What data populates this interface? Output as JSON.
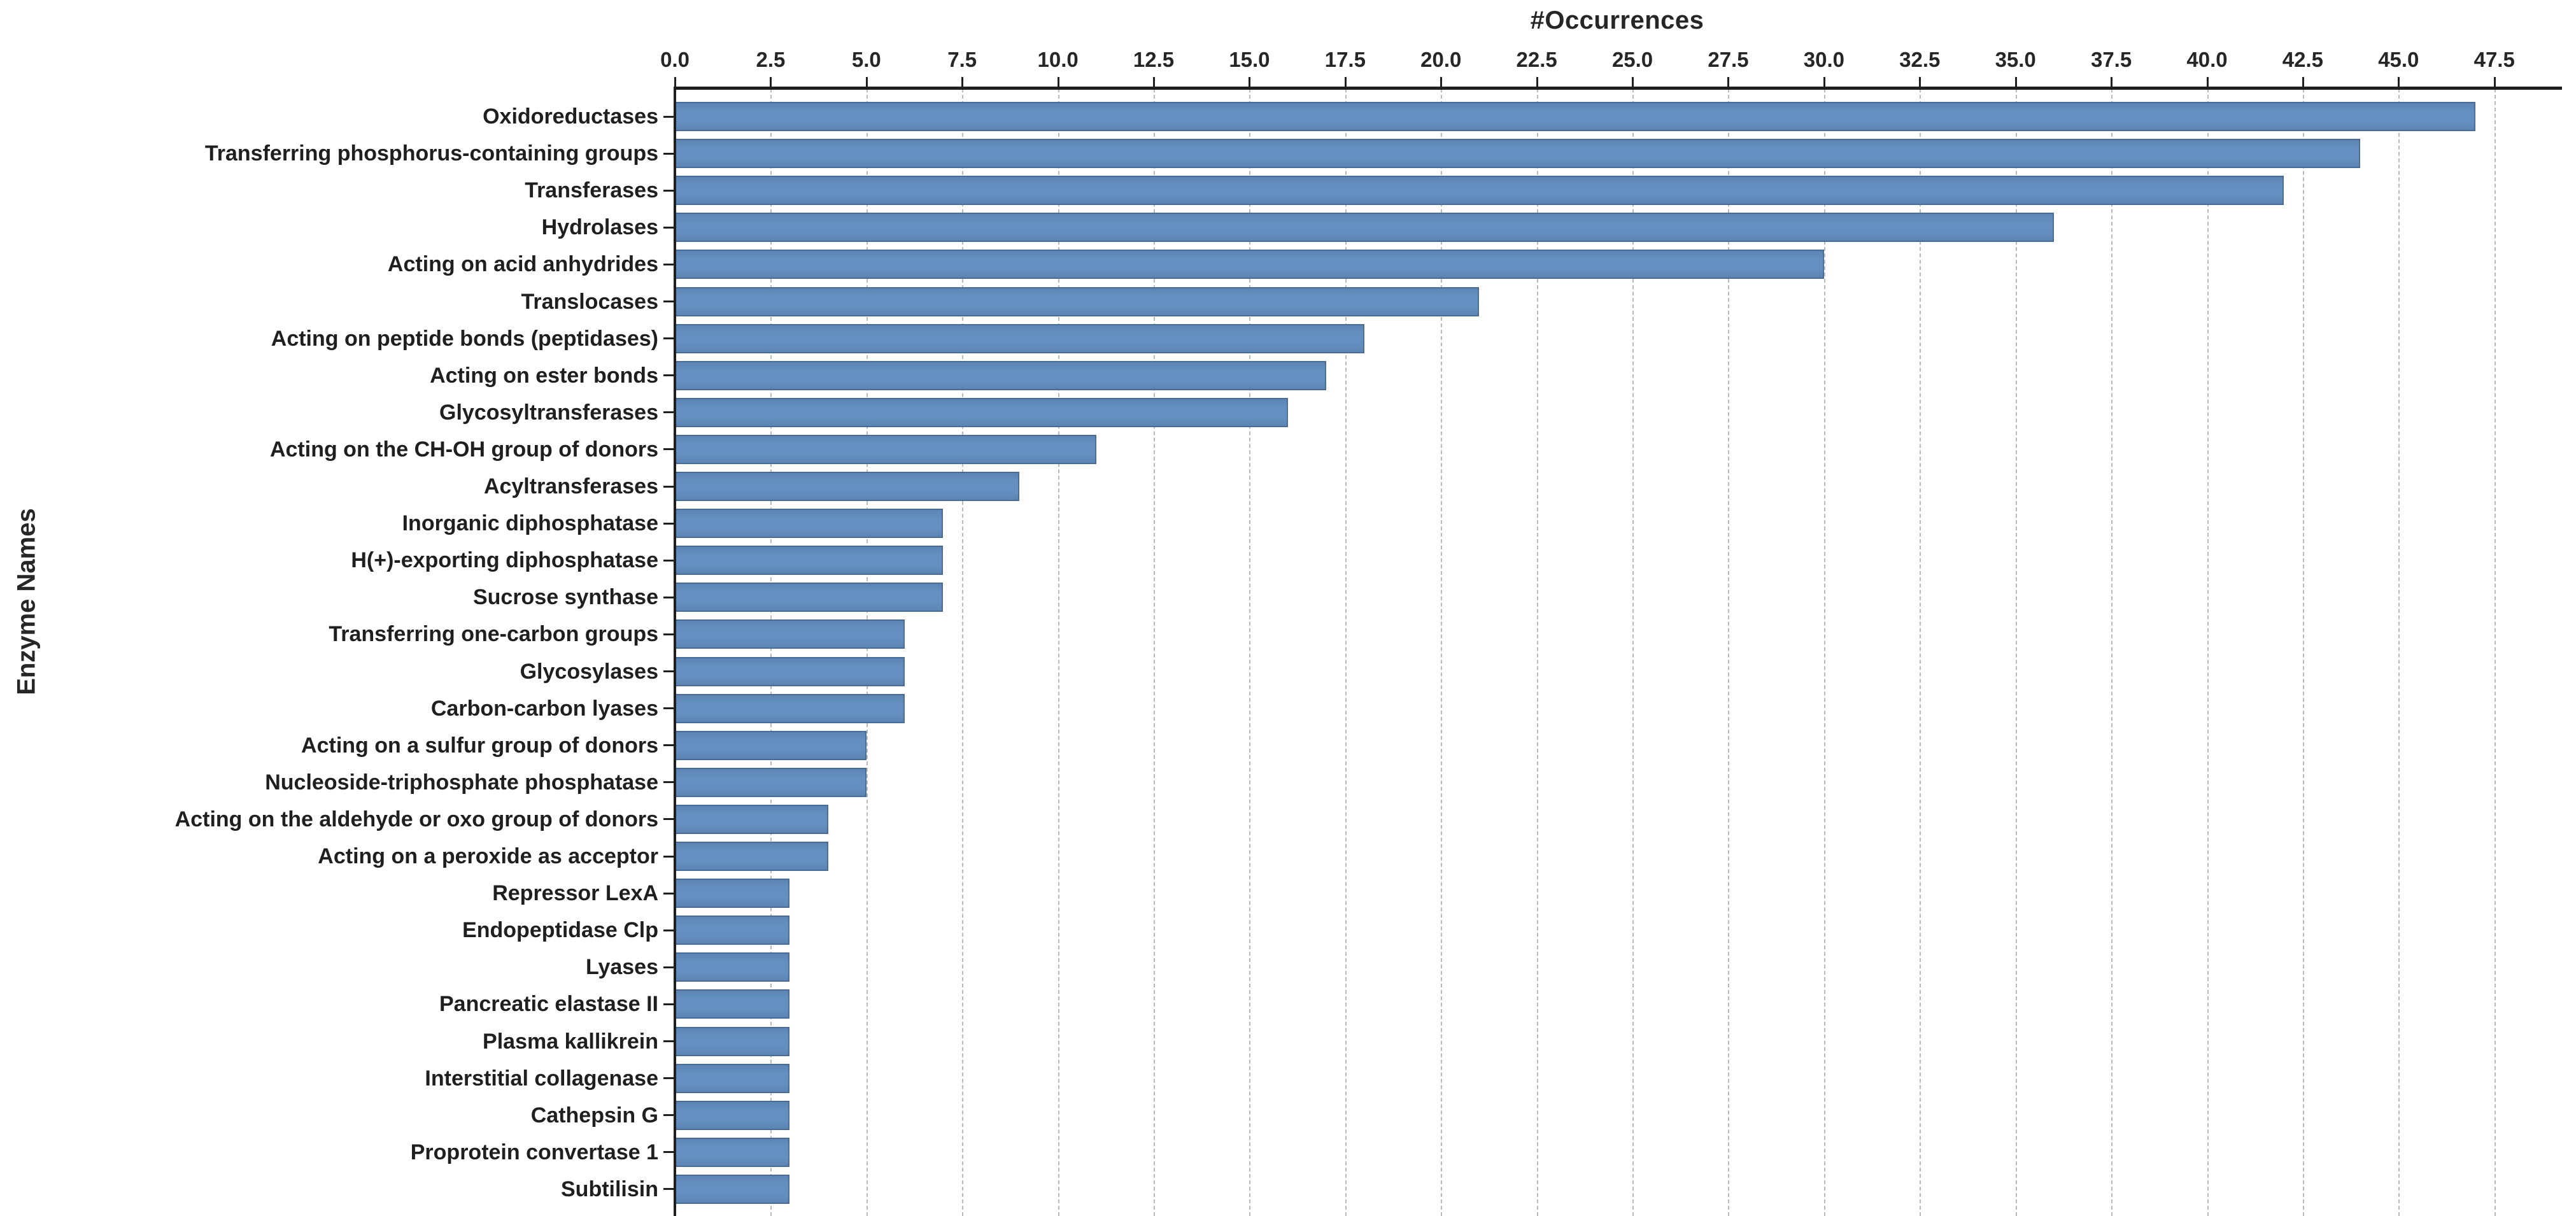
{
  "chart_data": {
    "type": "bar",
    "orientation": "horizontal",
    "title": "#Occurrences",
    "xlabel": "#Occurrences",
    "ylabel": "Enzyme Names",
    "categories": [
      "Oxidoreductases",
      "Transferring phosphorus-containing groups",
      "Transferases",
      "Hydrolases",
      "Acting on acid anhydrides",
      "Translocases",
      "Acting on peptide bonds (peptidases)",
      "Acting on ester bonds",
      "Glycosyltransferases",
      "Acting on the CH-OH group of donors",
      "Acyltransferases",
      "Inorganic diphosphatase",
      "H(+)-exporting diphosphatase",
      "Sucrose synthase",
      "Transferring one-carbon groups",
      "Glycosylases",
      "Carbon-carbon lyases",
      "Acting on a sulfur group of donors",
      "Nucleoside-triphosphate phosphatase",
      "Acting on the aldehyde or oxo group of donors",
      "Acting on a peroxide as acceptor",
      "Repressor LexA",
      "Endopeptidase Clp",
      "Lyases",
      "Pancreatic elastase II",
      "Plasma kallikrein",
      "Interstitial collagenase",
      "Cathepsin G",
      "Proprotein convertase 1",
      "Subtilisin"
    ],
    "values": [
      47,
      44,
      42,
      36,
      30,
      21,
      18,
      17,
      16,
      11,
      9,
      7,
      7,
      7,
      6,
      6,
      6,
      5,
      5,
      4,
      4,
      3,
      3,
      3,
      3,
      3,
      3,
      3,
      3,
      3
    ],
    "x_ticks": [
      "0.0",
      "2.5",
      "5.0",
      "7.5",
      "10.0",
      "12.5",
      "15.0",
      "17.5",
      "20.0",
      "22.5",
      "25.0",
      "27.5",
      "30.0",
      "32.5",
      "35.0",
      "37.5",
      "40.0",
      "42.5",
      "45.0",
      "47.5"
    ],
    "xlim": [
      0,
      49.2
    ],
    "grid": true,
    "grid_style": "dashed",
    "legend": "none",
    "colors": {
      "bar": "#618bbc",
      "bar_edge": "#38587d",
      "grid": "#b9b9b9",
      "axis": "#1f1f1f",
      "text": "#262626"
    }
  }
}
